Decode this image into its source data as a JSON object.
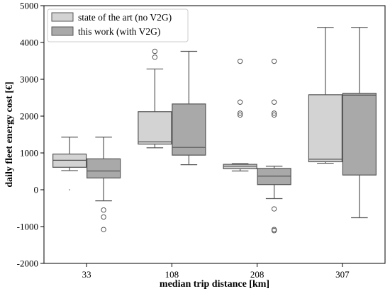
{
  "chart_data": {
    "type": "box",
    "xlabel": "median trip distance [km]",
    "ylabel": "daily fleet energy cost [€]",
    "categories": [
      "33",
      "108",
      "208",
      "307"
    ],
    "ylim": [
      -2000,
      5000
    ],
    "yticks": [
      -2000,
      -1000,
      0,
      1000,
      2000,
      3000,
      4000,
      5000
    ],
    "grid": false,
    "legend_position": "top-left",
    "series": [
      {
        "name": "state of the art (no V2G)",
        "color": "#d3d3d3",
        "boxes": [
          {
            "whislo": 520,
            "q1": 610,
            "median": 800,
            "q3": 970,
            "whishi": 1430,
            "fliers": []
          },
          {
            "whislo": 1140,
            "q1": 1240,
            "median": 1300,
            "q3": 2120,
            "whishi": 3280,
            "fliers": [
              3600,
              3760
            ]
          },
          {
            "whislo": 510,
            "q1": 570,
            "median": 640,
            "q3": 690,
            "whishi": 710,
            "fliers": [
              2030,
              2080,
              2380,
              3490
            ]
          },
          {
            "whislo": 720,
            "q1": 760,
            "median": 830,
            "q3": 2580,
            "whishi": 4410,
            "fliers": []
          }
        ]
      },
      {
        "name": "this work (with V2G)",
        "color": "#a9a9a9",
        "boxes": [
          {
            "whislo": -300,
            "q1": 320,
            "median": 510,
            "q3": 840,
            "whishi": 1430,
            "fliers": [
              -1080,
              -740,
              -550
            ]
          },
          {
            "whislo": 680,
            "q1": 940,
            "median": 1150,
            "q3": 2330,
            "whishi": 3760,
            "fliers": []
          },
          {
            "whislo": -240,
            "q1": 140,
            "median": 370,
            "q3": 580,
            "whishi": 640,
            "fliers": [
              -1110,
              -1080,
              -520,
              2030,
              2080,
              2380,
              3490
            ]
          },
          {
            "whislo": -760,
            "q1": 400,
            "median": 2570,
            "q3": 2620,
            "whishi": 4410,
            "fliers": []
          }
        ]
      }
    ],
    "stray_marks": [
      {
        "category": "33",
        "y": 0
      }
    ]
  }
}
